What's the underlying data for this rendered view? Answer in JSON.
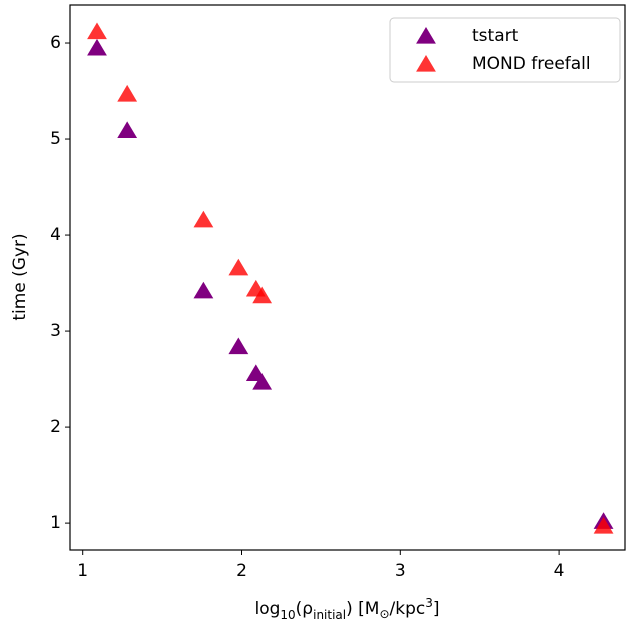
{
  "chart_data": {
    "type": "scatter",
    "xlabel": [
      "log",
      "10",
      "(ρ",
      "initial",
      ") [M",
      "⊙",
      "/kpc",
      "3",
      "]"
    ],
    "ylabel": "time (Gyr)",
    "series": [
      {
        "name": "tstart",
        "color": "#800080",
        "x": [
          1.09,
          1.28,
          1.76,
          1.98,
          2.09,
          2.13,
          4.28
        ],
        "values": [
          5.95,
          5.09,
          3.42,
          2.84,
          2.56,
          2.47,
          1.02
        ]
      },
      {
        "name": "MOND freefall",
        "color": "#ff0000",
        "x": [
          1.09,
          1.28,
          1.76,
          1.98,
          2.09,
          2.13,
          4.28
        ],
        "values": [
          6.12,
          5.47,
          4.16,
          3.66,
          3.44,
          3.37,
          0.97
        ]
      }
    ],
    "xlim": [
      0.92,
      4.415
    ],
    "ylim": [
      0.72,
      6.396
    ],
    "xticks": [
      1,
      2,
      3,
      4
    ],
    "yticks": [
      1,
      2,
      3,
      4,
      5,
      6
    ],
    "legend": "upper right"
  }
}
